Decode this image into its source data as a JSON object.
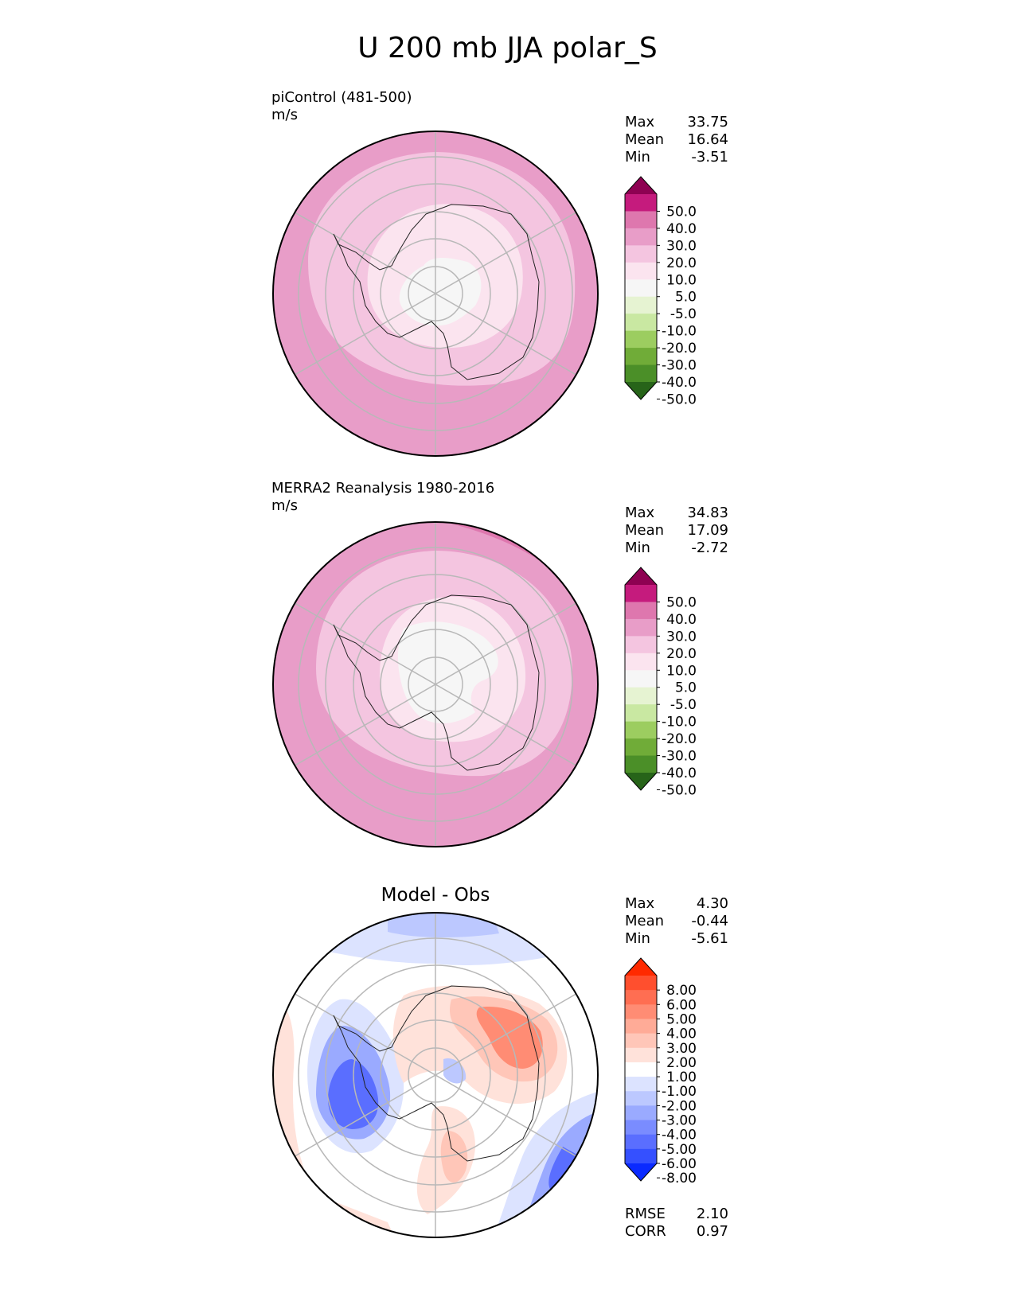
{
  "title": "U 200 mb JJA polar_S",
  "panels": [
    {
      "label": "piControl (481-500)",
      "units": "m/s",
      "stats": [
        [
          "Max",
          "33.75"
        ],
        [
          "Mean",
          "16.64"
        ],
        [
          "Min",
          "-3.51"
        ]
      ]
    },
    {
      "label": "MERRA2 Reanalysis 1980-2016",
      "units": "m/s",
      "stats": [
        [
          "Max",
          "34.83"
        ],
        [
          "Mean",
          "17.09"
        ],
        [
          "Min",
          "-2.72"
        ]
      ]
    },
    {
      "label": "Model - Obs",
      "stats": [
        [
          "Max",
          "4.30"
        ],
        [
          "Mean",
          "-0.44"
        ],
        [
          "Min",
          "-5.61"
        ]
      ],
      "metrics": [
        [
          "RMSE",
          "2.10"
        ],
        [
          "CORR",
          "0.97"
        ]
      ]
    }
  ],
  "colorbars": {
    "field": {
      "labels": [
        "50.0",
        "40.0",
        "30.0",
        "20.0",
        "10.0",
        "5.0",
        "-5.0",
        "-10.0",
        "-20.0",
        "-30.0",
        "-40.0",
        "-50.0"
      ],
      "colors": [
        "#8e0152",
        "#c51b7d",
        "#de77ae",
        "#e89dc8",
        "#f4c5e0",
        "#fbe4ef",
        "#f6f6f6",
        "#e6f3d2",
        "#c9e8a2",
        "#9ccd60",
        "#70ac38",
        "#4b8f28",
        "#276419"
      ]
    },
    "diff": {
      "labels": [
        "8.00",
        "6.00",
        "5.00",
        "4.00",
        "3.00",
        "2.00",
        "1.00",
        "-1.00",
        "-2.00",
        "-3.00",
        "-4.00",
        "-5.00",
        "-6.00",
        "-8.00"
      ],
      "colors": [
        "#ff2a00",
        "#ff4f2e",
        "#ff6e52",
        "#ff8c74",
        "#ffab97",
        "#ffc6b8",
        "#ffe2da",
        "#ffffff",
        "#dce3ff",
        "#bcc8ff",
        "#9aaaff",
        "#7a8cff",
        "#5a6eff",
        "#3550ff",
        "#0a2aff"
      ]
    }
  },
  "chart_data": [
    {
      "type": "heatmap",
      "title": "piControl (481-500)",
      "units": "m/s",
      "projection": "polar_S",
      "levels": [
        -50,
        -40,
        -30,
        -20,
        -10,
        -5,
        5,
        10,
        20,
        30,
        40,
        50
      ],
      "max": 33.75,
      "mean": 16.64,
      "min": -3.51
    },
    {
      "type": "heatmap",
      "title": "MERRA2 Reanalysis 1980-2016",
      "units": "m/s",
      "projection": "polar_S",
      "levels": [
        -50,
        -40,
        -30,
        -20,
        -10,
        -5,
        5,
        10,
        20,
        30,
        40,
        50
      ],
      "max": 34.83,
      "mean": 17.09,
      "min": -2.72
    },
    {
      "type": "heatmap",
      "title": "Model - Obs",
      "projection": "polar_S",
      "levels": [
        -8,
        -6,
        -5,
        -4,
        -3,
        -2,
        -1,
        1,
        2,
        3,
        4,
        5,
        6,
        8
      ],
      "max": 4.3,
      "mean": -0.44,
      "min": -5.61,
      "rmse": 2.1,
      "corr": 0.97
    }
  ]
}
